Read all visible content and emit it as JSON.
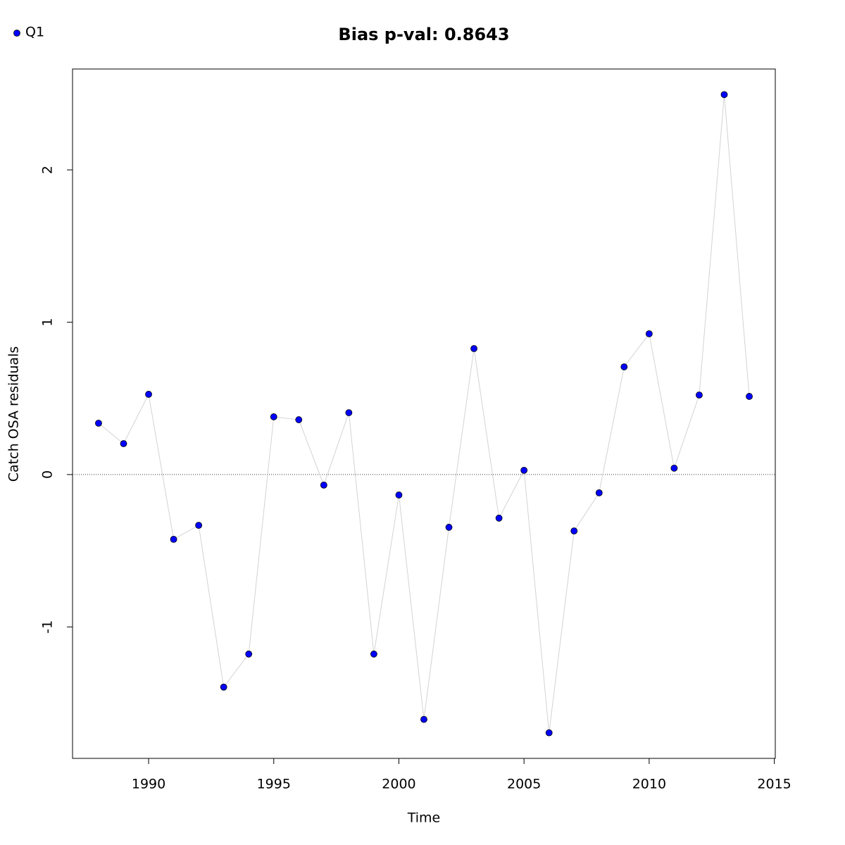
{
  "chart_data": {
    "type": "line",
    "title": "Bias p-val: 0.8643",
    "title_color": "#228b22",
    "x_label": "Time",
    "y_label": "Catch OSA residuals",
    "x": [
      1988,
      1989,
      1990,
      1991,
      1992,
      1993,
      1994,
      1995,
      1996,
      1997,
      1998,
      1999,
      2000,
      2001,
      2002,
      2003,
      2004,
      2005,
      2006,
      2007,
      2008,
      2009,
      2010,
      2011,
      2012,
      2013,
      2014
    ],
    "series": [
      {
        "name": "Q1",
        "color": "#0000ff",
        "line_color": "#d3d3d3",
        "values": [
          0.337,
          0.203,
          0.527,
          -0.425,
          -0.333,
          -1.395,
          -1.178,
          0.379,
          0.36,
          -0.069,
          0.406,
          -1.178,
          -0.134,
          -1.607,
          -0.346,
          0.827,
          -0.286,
          0.028,
          -1.695,
          -0.37,
          -0.12,
          0.707,
          0.924,
          0.042,
          0.522,
          2.494,
          0.513
        ]
      }
    ],
    "xlim": [
      1986.96,
      2015.04
    ],
    "ylim": [
      -1.863,
      2.662
    ],
    "xticks": [
      1990,
      1995,
      2000,
      2005,
      2010,
      2015
    ],
    "yticks": [
      -1,
      0,
      1,
      2
    ],
    "reference_line": 0,
    "legend": "top-left",
    "grid": false
  }
}
